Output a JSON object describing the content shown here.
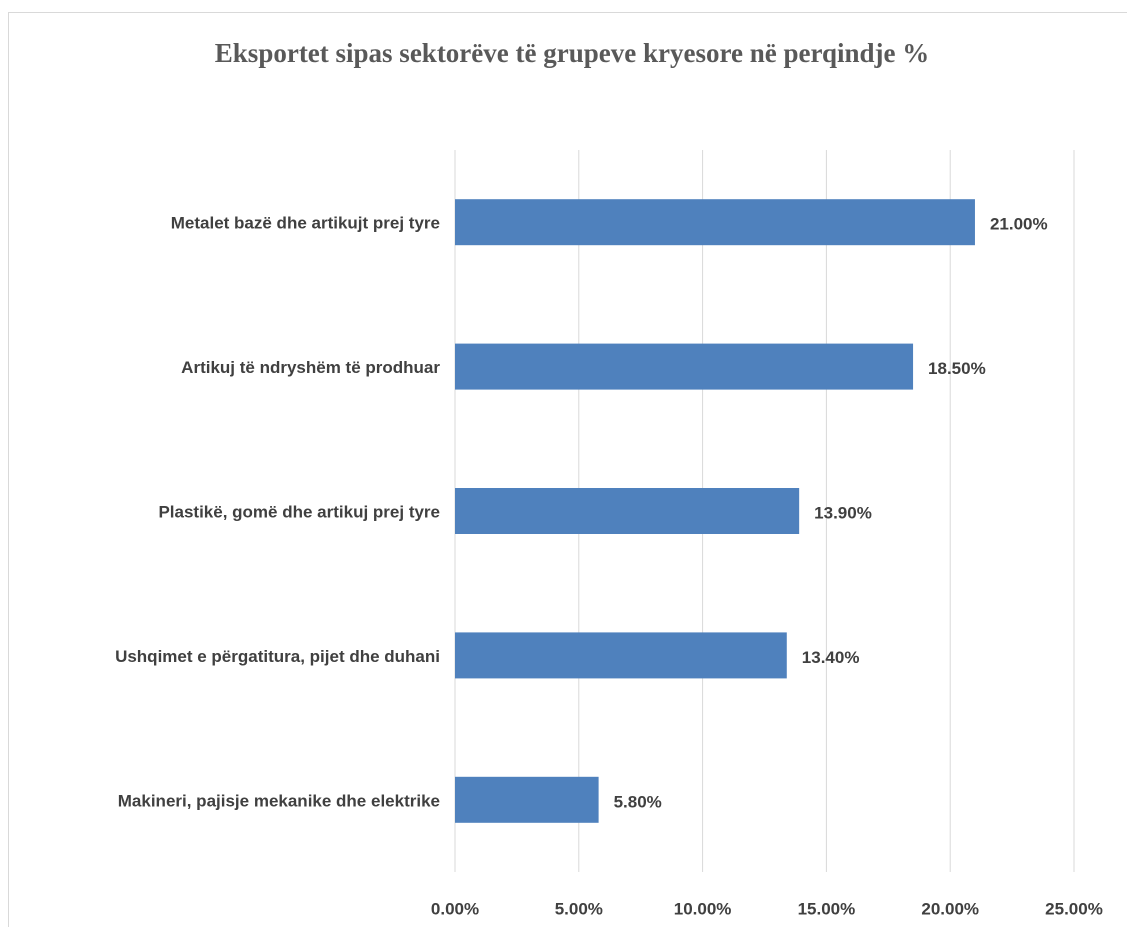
{
  "chart_data": {
    "type": "bar",
    "orientation": "horizontal",
    "title": "Eksportet sipas sektorëve të grupeve kryesore në perqindje %",
    "categories": [
      "Metalet bazë dhe artikujt prej tyre",
      "Artikuj të ndryshëm të prodhuar",
      "Plastikë, gomë dhe artikuj prej tyre",
      "Ushqimet e përgatitura, pijet dhe duhani",
      "Makineri, pajisje mekanike dhe elektrike"
    ],
    "values": [
      21.0,
      18.5,
      13.9,
      13.4,
      5.8
    ],
    "value_labels": [
      "21.00%",
      "18.50%",
      "13.90%",
      "13.40%",
      "5.80%"
    ],
    "color": "#4f81bd",
    "xlim": [
      0,
      25
    ],
    "xticks": [
      {
        "value": 0,
        "label": "0.00%"
      },
      {
        "value": 5,
        "label": "5.00%"
      },
      {
        "value": 10,
        "label": "10.00%"
      },
      {
        "value": 15,
        "label": "15.00%"
      },
      {
        "value": 20,
        "label": "20.00%"
      },
      {
        "value": 25,
        "label": "25.00%"
      }
    ],
    "grid": true
  }
}
